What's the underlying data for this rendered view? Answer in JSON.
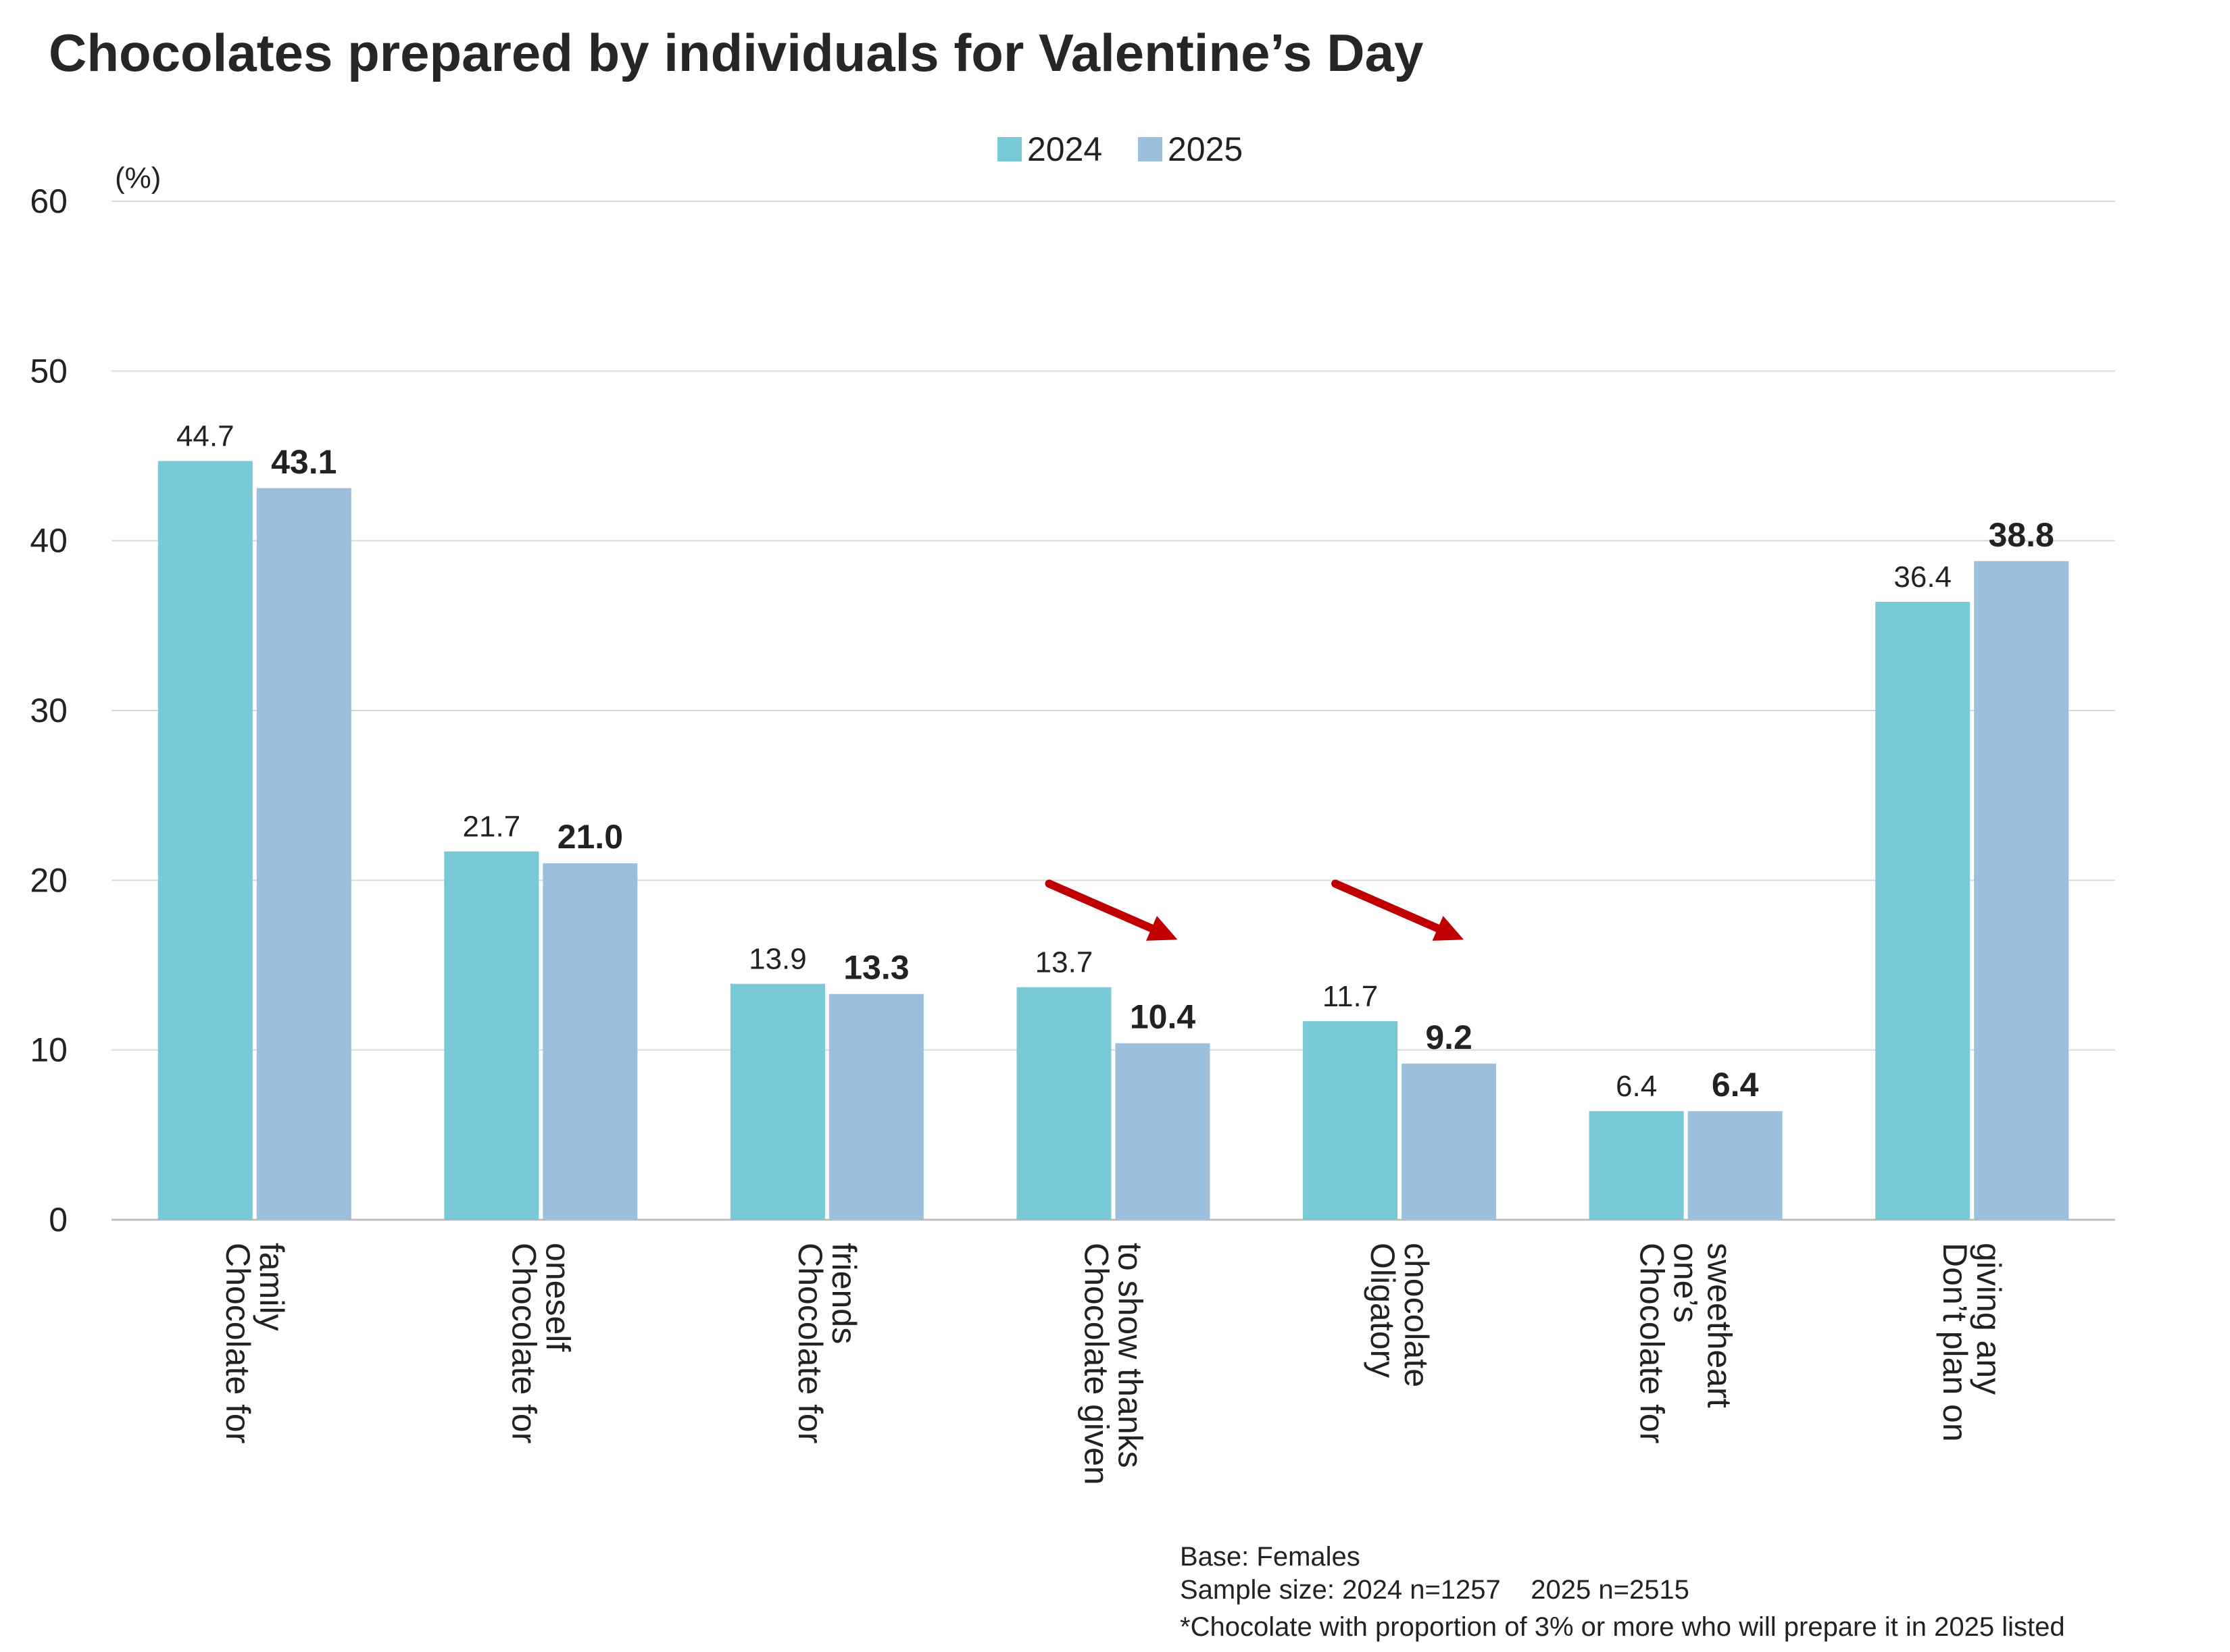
{
  "title": "Chocolates prepared by individuals for Valentine’s Day",
  "unit": "(%)",
  "colors": {
    "2024": "#79c9d6",
    "2025": "#9dbfde",
    "arrow": "#c00000",
    "grid": "#d9d9d9"
  },
  "chart_data": {
    "type": "bar",
    "title": "Chocolates prepared by individuals for Valentine’s Day",
    "ylabel": "(%)",
    "ylim": [
      0,
      60
    ],
    "yticks": [
      0,
      10,
      20,
      30,
      40,
      50,
      60
    ],
    "grid": true,
    "legend_position": "top-center",
    "categories": [
      [
        "Chocolate for",
        "family"
      ],
      [
        "Chocolate for",
        "oneself"
      ],
      [
        "Chocolate for",
        "friends"
      ],
      [
        "Chocolate given",
        "to show thanks"
      ],
      [
        "Oligatory",
        "chocolate"
      ],
      [
        "Chocolate for",
        "one’s",
        "sweetheart"
      ],
      [
        "Don’t plan on",
        "giving any"
      ]
    ],
    "series": [
      {
        "name": "2024",
        "values": [
          44.7,
          21.7,
          13.9,
          13.7,
          11.7,
          6.4,
          36.4
        ]
      },
      {
        "name": "2025",
        "values": [
          43.1,
          21.0,
          13.3,
          10.4,
          9.2,
          6.4,
          38.8
        ]
      }
    ],
    "annotations": [
      {
        "type": "down-arrow",
        "category_index": 3
      },
      {
        "type": "down-arrow",
        "category_index": 4
      }
    ]
  },
  "notes": [
    "Base: Females",
    "Sample size: 2024 n=1257    2025 n=2515",
    "*Chocolate with proportion of 3% or more who will prepare it in 2025 listed"
  ]
}
